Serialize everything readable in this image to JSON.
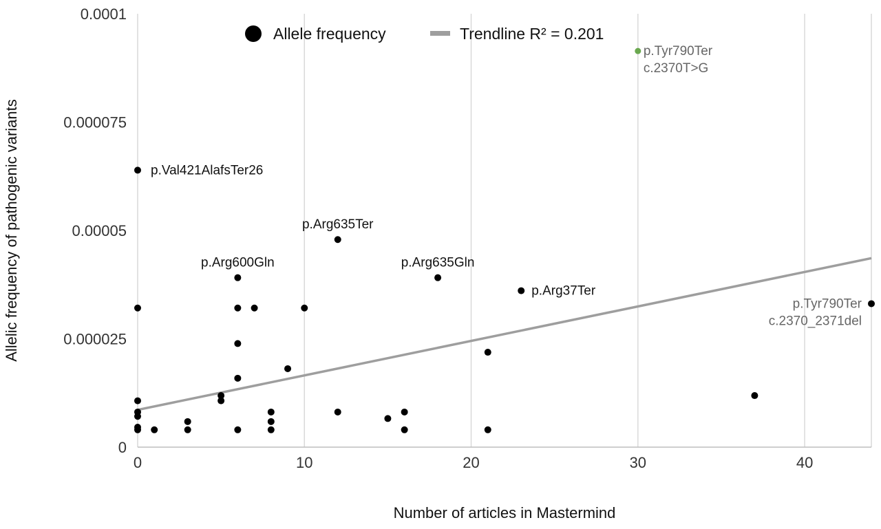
{
  "chart_data": {
    "type": "scatter",
    "xlabel": "Number of articles in Mastermind",
    "ylabel": "Allelic frequency of pathogenic variants",
    "xlim": [
      0,
      44
    ],
    "ylim": [
      0,
      0.0001
    ],
    "x_ticks": [
      {
        "value": 0,
        "label": "0"
      },
      {
        "value": 10,
        "label": "10"
      },
      {
        "value": 20,
        "label": "20"
      },
      {
        "value": 30,
        "label": "30"
      },
      {
        "value": 40,
        "label": "40"
      }
    ],
    "y_ticks": [
      {
        "value": 0,
        "label": "0"
      },
      {
        "value": 2.5e-05,
        "label": "0.000025"
      },
      {
        "value": 5e-05,
        "label": "0.00005"
      },
      {
        "value": 7.5e-05,
        "label": "0.000075"
      },
      {
        "value": 0.0001,
        "label": "0.0001"
      }
    ],
    "grid": "vertical",
    "legend": {
      "placement": "top",
      "entries": [
        {
          "label": "Allele frequency",
          "marker": "circle",
          "color": "#000000"
        },
        {
          "label": "Trendline R² = 0.201",
          "marker": "line",
          "color": "#9e9e9e"
        }
      ]
    },
    "series": [
      {
        "name": "Allele frequency",
        "color": "#000000",
        "points": [
          {
            "x": 0,
            "y": 6.39e-05,
            "label": "p.Val421AlafsTer26"
          },
          {
            "x": 0,
            "y": 3.21e-05
          },
          {
            "x": 0,
            "y": 1.07e-05
          },
          {
            "x": 0,
            "y": 8.1e-06
          },
          {
            "x": 0,
            "y": 7.1e-06
          },
          {
            "x": 0,
            "y": 4.6e-06
          },
          {
            "x": 0,
            "y": 4e-06
          },
          {
            "x": 1,
            "y": 4e-06
          },
          {
            "x": 3,
            "y": 5.9e-06
          },
          {
            "x": 3,
            "y": 4e-06
          },
          {
            "x": 5,
            "y": 1.19e-05
          },
          {
            "x": 5,
            "y": 1.07e-05
          },
          {
            "x": 6,
            "y": 3.91e-05,
            "label": "p.Arg600Gln"
          },
          {
            "x": 6,
            "y": 3.21e-05
          },
          {
            "x": 6,
            "y": 2.39e-05
          },
          {
            "x": 6,
            "y": 1.59e-05
          },
          {
            "x": 6,
            "y": 4e-06
          },
          {
            "x": 7,
            "y": 3.21e-05
          },
          {
            "x": 8,
            "y": 8.1e-06
          },
          {
            "x": 8,
            "y": 5.9e-06
          },
          {
            "x": 8,
            "y": 4e-06
          },
          {
            "x": 9,
            "y": 1.81e-05
          },
          {
            "x": 10,
            "y": 3.21e-05
          },
          {
            "x": 12,
            "y": 4.79e-05,
            "label": "p.Arg635Ter"
          },
          {
            "x": 12,
            "y": 8.1e-06
          },
          {
            "x": 15,
            "y": 6.6e-06
          },
          {
            "x": 16,
            "y": 8.1e-06
          },
          {
            "x": 16,
            "y": 4e-06
          },
          {
            "x": 18,
            "y": 3.91e-05,
            "label": "p.Arg635Gln"
          },
          {
            "x": 21,
            "y": 2.19e-05
          },
          {
            "x": 21,
            "y": 4e-06
          },
          {
            "x": 23,
            "y": 3.61e-05,
            "label": "p.Arg37Ter"
          },
          {
            "x": 30,
            "y": 9.14e-05,
            "label": "p.Tyr790Ter",
            "label2": "c.2370T>G",
            "highlight": true
          },
          {
            "x": 37,
            "y": 1.19e-05
          },
          {
            "x": 44,
            "y": 3.31e-05,
            "label": "p.Tyr790Ter",
            "label2": "c.2370_2371del"
          }
        ]
      }
    ],
    "trendline": {
      "name": "Trendline R² = 0.201",
      "x": [
        0,
        44
      ],
      "y": [
        8.6e-06,
        4.36e-05
      ],
      "r_squared": 0.201,
      "color": "#9e9e9e"
    },
    "colors": {
      "points": "#000000",
      "highlight": "#6aa84f",
      "trendline": "#9e9e9e",
      "grid": "#d9d9d9",
      "gray_label": "#666666"
    }
  }
}
